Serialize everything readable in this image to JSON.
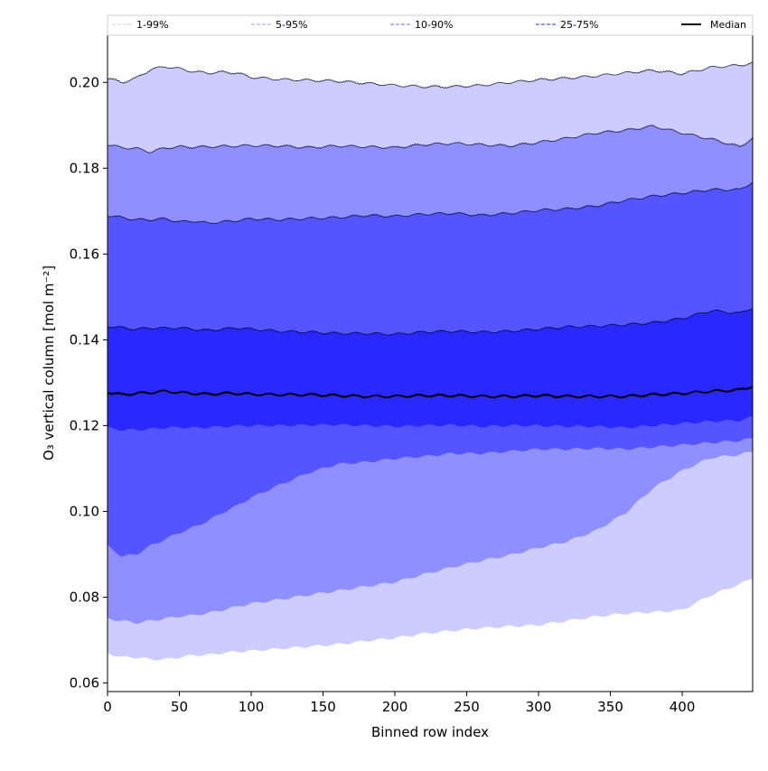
{
  "chart_data": {
    "type": "area",
    "title": "",
    "xlabel": "Binned row index",
    "ylabel": "O₃ vertical column [mol m⁻²]",
    "xlim": [
      0,
      449
    ],
    "ylim": [
      0.058,
      0.211
    ],
    "xticks": [
      0,
      50,
      100,
      150,
      200,
      250,
      300,
      350,
      400
    ],
    "xtick_labels": [
      "0",
      "50",
      "100",
      "150",
      "200",
      "250",
      "300",
      "350",
      "400"
    ],
    "yticks": [
      0.06,
      0.08,
      0.1,
      0.12,
      0.14,
      0.16,
      0.18,
      0.2
    ],
    "ytick_labels": [
      "0.06",
      "0.08",
      "0.10",
      "0.12",
      "0.14",
      "0.16",
      "0.18",
      "0.20"
    ],
    "legend": {
      "placement": "top",
      "entries": [
        {
          "label": "1-99%",
          "color": "#d8d8ff",
          "style": "dashed"
        },
        {
          "label": "5-95%",
          "color": "#b0b0ff",
          "style": "dashed"
        },
        {
          "label": "10-90%",
          "color": "#8c8cff",
          "style": "dashed"
        },
        {
          "label": "25-75%",
          "color": "#5555ff",
          "style": "dashed"
        },
        {
          "label": "Median",
          "color": "#000000",
          "style": "solid"
        }
      ]
    },
    "x": [
      0,
      10,
      20,
      30,
      40,
      50,
      60,
      70,
      80,
      90,
      100,
      120,
      140,
      160,
      180,
      200,
      220,
      240,
      260,
      280,
      300,
      320,
      340,
      360,
      380,
      400,
      420,
      440,
      449
    ],
    "bands": [
      {
        "name": "1-99%",
        "color": "#ccccff",
        "lower": [
          0.067,
          0.066,
          0.066,
          0.0655,
          0.0655,
          0.066,
          0.0665,
          0.0665,
          0.067,
          0.0673,
          0.0675,
          0.068,
          0.0685,
          0.069,
          0.0698,
          0.0705,
          0.0715,
          0.0722,
          0.0728,
          0.0732,
          0.0735,
          0.0745,
          0.0755,
          0.0762,
          0.0765,
          0.077,
          0.0805,
          0.083,
          0.0845
        ],
        "upper": [
          0.201,
          0.2,
          0.201,
          0.203,
          0.2037,
          0.2032,
          0.2025,
          0.2022,
          0.2024,
          0.2022,
          0.2012,
          0.2007,
          0.2005,
          0.2003,
          0.1998,
          0.1993,
          0.199,
          0.199,
          0.1993,
          0.2,
          0.2006,
          0.201,
          0.2015,
          0.2022,
          0.2028,
          0.202,
          0.2035,
          0.204,
          0.2045
        ]
      },
      {
        "name": "5-95%",
        "color": "#8f8fff",
        "lower": [
          0.075,
          0.0745,
          0.074,
          0.0745,
          0.075,
          0.0755,
          0.0758,
          0.0763,
          0.077,
          0.0778,
          0.0785,
          0.0795,
          0.0805,
          0.0815,
          0.0825,
          0.0835,
          0.0853,
          0.087,
          0.0885,
          0.0898,
          0.0915,
          0.093,
          0.0955,
          0.0995,
          0.1055,
          0.1095,
          0.1125,
          0.1132,
          0.114
        ],
        "upper": [
          0.1855,
          0.1848,
          0.1846,
          0.1838,
          0.1847,
          0.185,
          0.1849,
          0.185,
          0.1851,
          0.1852,
          0.1853,
          0.1852,
          0.1848,
          0.1852,
          0.185,
          0.1848,
          0.1855,
          0.1858,
          0.1855,
          0.1852,
          0.186,
          0.187,
          0.1882,
          0.1888,
          0.1898,
          0.1882,
          0.1868,
          0.185,
          0.187
        ]
      },
      {
        "name": "10-90%",
        "color": "#5555ff",
        "lower": [
          0.092,
          0.0895,
          0.09,
          0.092,
          0.0935,
          0.095,
          0.0963,
          0.0978,
          0.0997,
          0.1013,
          0.1032,
          0.1062,
          0.109,
          0.111,
          0.1115,
          0.1123,
          0.1128,
          0.1135,
          0.1135,
          0.114,
          0.1145,
          0.1145,
          0.1147,
          0.1145,
          0.115,
          0.1155,
          0.116,
          0.1165,
          0.117
        ],
        "upper": [
          0.169,
          0.1685,
          0.168,
          0.168,
          0.1682,
          0.1675,
          0.1677,
          0.1672,
          0.1675,
          0.1678,
          0.1682,
          0.168,
          0.1683,
          0.1685,
          0.169,
          0.1688,
          0.1693,
          0.1695,
          0.169,
          0.1695,
          0.1702,
          0.1705,
          0.1712,
          0.1725,
          0.1735,
          0.1742,
          0.175,
          0.175,
          0.1768
        ]
      },
      {
        "name": "25-75%",
        "color": "#2828ff",
        "lower": [
          0.1195,
          0.119,
          0.119,
          0.1192,
          0.1195,
          0.1196,
          0.1195,
          0.1196,
          0.1198,
          0.1199,
          0.12,
          0.12,
          0.1201,
          0.1202,
          0.12,
          0.1198,
          0.12,
          0.1201,
          0.1198,
          0.12,
          0.12,
          0.1198,
          0.1198,
          0.1195,
          0.12,
          0.1205,
          0.121,
          0.1212,
          0.122
        ],
        "upper": [
          0.1432,
          0.1428,
          0.1425,
          0.1428,
          0.1427,
          0.1428,
          0.1425,
          0.1422,
          0.1425,
          0.1428,
          0.1425,
          0.142,
          0.1418,
          0.1415,
          0.1415,
          0.1413,
          0.1418,
          0.142,
          0.1418,
          0.142,
          0.1425,
          0.143,
          0.1432,
          0.1435,
          0.144,
          0.145,
          0.1468,
          0.1462,
          0.1475
        ]
      }
    ],
    "median": {
      "name": "Median",
      "color": "#000000",
      "values": [
        0.1278,
        0.1272,
        0.1275,
        0.1277,
        0.128,
        0.1277,
        0.1275,
        0.1273,
        0.1275,
        0.1275,
        0.1273,
        0.1272,
        0.1272,
        0.127,
        0.1268,
        0.1268,
        0.127,
        0.127,
        0.1268,
        0.1268,
        0.127,
        0.1268,
        0.1268,
        0.1268,
        0.1272,
        0.1275,
        0.128,
        0.1283,
        0.1292
      ]
    }
  }
}
